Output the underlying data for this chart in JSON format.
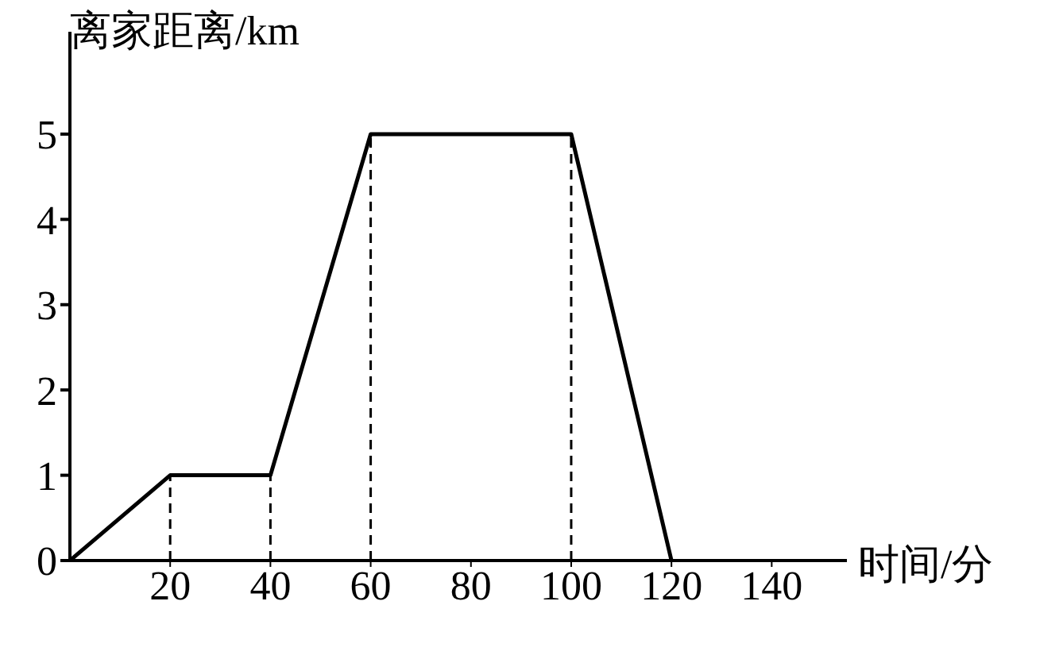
{
  "chart_data": {
    "type": "line",
    "xlabel": "时间/分",
    "ylabel": "离家距离/km",
    "x": [
      0,
      20,
      40,
      60,
      100,
      120
    ],
    "series": [
      {
        "color": "#000000",
        "values": [
          0,
          1,
          1,
          5,
          5,
          0
        ]
      }
    ],
    "xlim": [
      0,
      155
    ],
    "xticks": [
      20,
      40,
      60,
      80,
      100,
      120,
      140
    ],
    "ylim": [
      0,
      6.2
    ],
    "yticks": [
      0,
      1,
      2,
      3,
      4,
      5
    ],
    "ref_lines": [
      {
        "axis": "x",
        "value": 20,
        "line_style": "dashed"
      },
      {
        "axis": "x",
        "value": 40,
        "line_style": "dashed"
      },
      {
        "axis": "x",
        "value": 60,
        "line_style": "dashed"
      },
      {
        "axis": "x",
        "value": 100,
        "line_style": "dashed"
      }
    ],
    "grid": false,
    "legend": false,
    "marker": "none",
    "line_style": "solid"
  }
}
